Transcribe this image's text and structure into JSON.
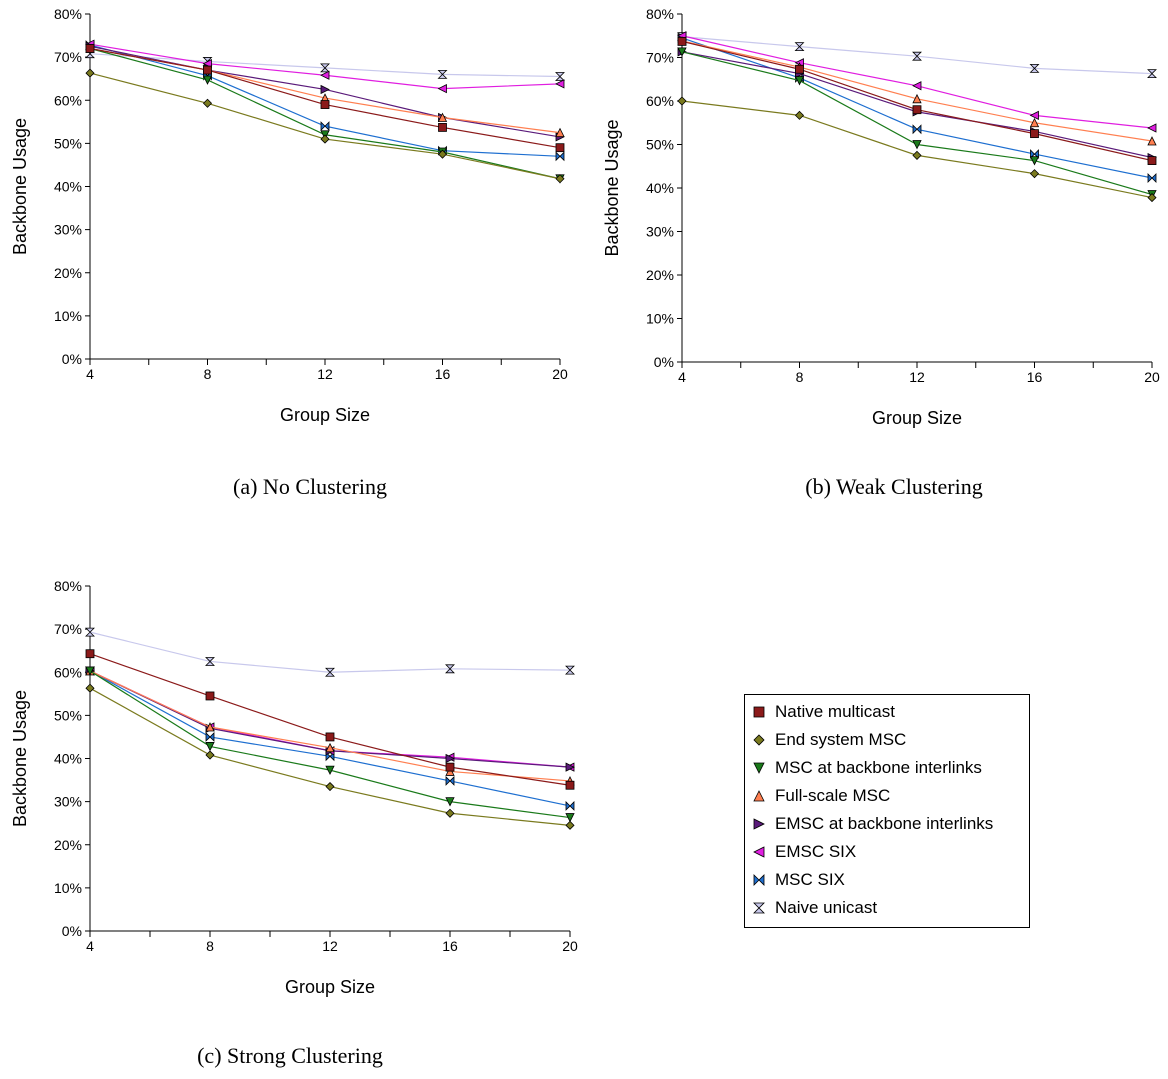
{
  "figure": {
    "captions": [
      "(a) No Clustering",
      "(b) Weak Clustering",
      "(c) Strong Clustering"
    ]
  },
  "legend": {
    "items": [
      {
        "label": "Native multicast",
        "marker": "square",
        "color": "#8b1a1a"
      },
      {
        "label": "End system MSC",
        "marker": "diamond",
        "color": "#7a7a1e"
      },
      {
        "label": "MSC at backbone interlinks",
        "marker": "triangle-down",
        "color": "#1a7a1a"
      },
      {
        "label": "Full-scale MSC",
        "marker": "triangle-up",
        "color": "#ff7f50"
      },
      {
        "label": "EMSC at backbone interlinks",
        "marker": "triangle-right",
        "color": "#5a1a7a"
      },
      {
        "label": "EMSC SIX",
        "marker": "triangle-left",
        "color": "#e01ee0"
      },
      {
        "label": "MSC SIX",
        "marker": "bowtie",
        "color": "#1e6fd0"
      },
      {
        "label": "Naive unicast",
        "marker": "hourglass",
        "color": "#c8c8ec"
      }
    ]
  },
  "chart_data": [
    {
      "type": "line",
      "title": "",
      "xlabel": "Group Size",
      "ylabel": "Backbone Usage",
      "x": [
        4,
        8,
        12,
        16,
        20
      ],
      "ylim": [
        0,
        80
      ],
      "yticks": [
        "0%",
        "10%",
        "20%",
        "30%",
        "40%",
        "50%",
        "60%",
        "70%",
        "80%"
      ],
      "xticks": [
        "4",
        "8",
        "12",
        "16",
        "20"
      ],
      "series": [
        {
          "name": "Native multicast",
          "values": [
            72.0,
            67.0,
            59.0,
            53.7,
            49.0
          ]
        },
        {
          "name": "End system MSC",
          "values": [
            66.3,
            59.3,
            51.0,
            47.5,
            41.8
          ]
        },
        {
          "name": "MSC at backbone interlinks",
          "values": [
            72.0,
            64.7,
            52.0,
            48.0,
            41.8
          ]
        },
        {
          "name": "Full-scale MSC",
          "values": [
            72.0,
            67.0,
            60.5,
            56.0,
            52.5
          ]
        },
        {
          "name": "EMSC at backbone interlinks",
          "values": [
            72.5,
            67.0,
            62.5,
            56.0,
            51.5
          ]
        },
        {
          "name": "EMSC SIX",
          "values": [
            73.0,
            68.5,
            65.8,
            62.7,
            63.8
          ]
        },
        {
          "name": "MSC SIX",
          "values": [
            72.8,
            65.7,
            54.0,
            48.3,
            47.0
          ]
        },
        {
          "name": "Naive unicast",
          "values": [
            70.8,
            69.0,
            67.5,
            66.0,
            65.5
          ]
        }
      ]
    },
    {
      "type": "line",
      "title": "",
      "xlabel": "Group Size",
      "ylabel": "Backbone Usage",
      "x": [
        4,
        8,
        12,
        16,
        20
      ],
      "ylim": [
        0,
        80
      ],
      "yticks": [
        "0%",
        "10%",
        "20%",
        "30%",
        "40%",
        "50%",
        "60%",
        "70%",
        "80%"
      ],
      "xticks": [
        "4",
        "8",
        "12",
        "16",
        "20"
      ],
      "series": [
        {
          "name": "Native multicast",
          "values": [
            73.7,
            67.3,
            58.0,
            52.5,
            46.3
          ]
        },
        {
          "name": "End system MSC",
          "values": [
            60.0,
            56.7,
            47.5,
            43.3,
            37.8
          ]
        },
        {
          "name": "MSC at backbone interlinks",
          "values": [
            71.3,
            64.7,
            50.0,
            46.3,
            38.5
          ]
        },
        {
          "name": "Full-scale MSC",
          "values": [
            73.8,
            67.8,
            60.5,
            55.0,
            50.8
          ]
        },
        {
          "name": "EMSC at backbone interlinks",
          "values": [
            71.3,
            66.3,
            57.5,
            53.0,
            47.0
          ]
        },
        {
          "name": "EMSC SIX",
          "values": [
            75.0,
            68.8,
            63.5,
            56.7,
            53.8
          ]
        },
        {
          "name": "MSC SIX",
          "values": [
            74.5,
            65.3,
            53.5,
            47.8,
            42.3
          ]
        },
        {
          "name": "Naive unicast",
          "values": [
            74.8,
            72.5,
            70.3,
            67.5,
            66.3
          ]
        }
      ]
    },
    {
      "type": "line",
      "title": "",
      "xlabel": "Group Size",
      "ylabel": "Backbone Usage",
      "x": [
        4,
        8,
        12,
        16,
        20
      ],
      "ylim": [
        0,
        80
      ],
      "yticks": [
        "0%",
        "10%",
        "20%",
        "30%",
        "40%",
        "50%",
        "60%",
        "70%",
        "80%"
      ],
      "xticks": [
        "4",
        "8",
        "12",
        "16",
        "20"
      ],
      "series": [
        {
          "name": "Native multicast",
          "values": [
            64.3,
            54.5,
            45.0,
            38.0,
            33.8
          ]
        },
        {
          "name": "End system MSC",
          "values": [
            56.3,
            40.8,
            33.5,
            27.3,
            24.5
          ]
        },
        {
          "name": "MSC at backbone interlinks",
          "values": [
            60.3,
            42.8,
            37.3,
            30.0,
            26.3
          ]
        },
        {
          "name": "Full-scale MSC",
          "values": [
            60.3,
            47.3,
            42.5,
            37.0,
            34.8
          ]
        },
        {
          "name": "EMSC at backbone interlinks",
          "values": [
            60.3,
            47.0,
            41.8,
            40.0,
            38.0
          ]
        },
        {
          "name": "EMSC SIX",
          "values": [
            60.3,
            47.3,
            41.8,
            40.3,
            38.0
          ]
        },
        {
          "name": "MSC SIX",
          "values": [
            60.3,
            45.0,
            40.5,
            34.8,
            29.0
          ]
        },
        {
          "name": "Naive unicast",
          "values": [
            69.3,
            62.5,
            60.0,
            60.8,
            60.5
          ]
        }
      ]
    }
  ]
}
